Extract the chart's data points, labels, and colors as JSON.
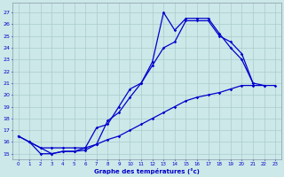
{
  "xlabel": "Graphe des températures (°c)",
  "bg_color": "#cce8e8",
  "grid_color": "#aacccc",
  "line_color": "#0000cc",
  "ylim_min": 14.5,
  "ylim_max": 27.8,
  "xlim_min": -0.5,
  "xlim_max": 23.5,
  "yticks": [
    15,
    16,
    17,
    18,
    19,
    20,
    21,
    22,
    23,
    24,
    25,
    26,
    27
  ],
  "xticks": [
    0,
    1,
    2,
    3,
    4,
    5,
    6,
    7,
    8,
    9,
    10,
    11,
    12,
    13,
    14,
    15,
    16,
    17,
    18,
    19,
    20,
    21,
    22,
    23
  ],
  "curve1_x": [
    0,
    1,
    2,
    3,
    4,
    5,
    6,
    7,
    8,
    9,
    10,
    11,
    12,
    13,
    14,
    15,
    16,
    17,
    18,
    19,
    20,
    21,
    22
  ],
  "curve1_y": [
    16.5,
    16.0,
    15.0,
    15.0,
    15.2,
    15.2,
    15.5,
    17.2,
    17.5,
    19.0,
    20.5,
    21.0,
    22.8,
    27.0,
    25.5,
    26.5,
    26.5,
    26.5,
    25.2,
    24.0,
    23.0,
    21.0,
    20.8
  ],
  "curve2_x": [
    1,
    3,
    4,
    5,
    6,
    7,
    8,
    9,
    10,
    11,
    12,
    13,
    14,
    15,
    16,
    17,
    18,
    19,
    20,
    21
  ],
  "curve2_y": [
    16.0,
    15.0,
    15.2,
    15.2,
    15.3,
    15.8,
    17.8,
    18.5,
    19.8,
    21.0,
    22.5,
    24.0,
    24.5,
    26.3,
    26.3,
    26.3,
    25.0,
    24.5,
    23.5,
    21.0
  ],
  "curve3_x": [
    0,
    1,
    2,
    3,
    4,
    5,
    6,
    7,
    8,
    9,
    10,
    11,
    12,
    13,
    14,
    15,
    16,
    17,
    18,
    19,
    20,
    21,
    22,
    23
  ],
  "curve3_y": [
    16.5,
    16.0,
    15.5,
    15.5,
    15.5,
    15.5,
    15.5,
    15.8,
    16.2,
    16.5,
    17.0,
    17.5,
    18.0,
    18.5,
    19.0,
    19.5,
    19.8,
    20.0,
    20.2,
    20.5,
    20.8,
    20.8,
    20.8,
    20.8
  ]
}
